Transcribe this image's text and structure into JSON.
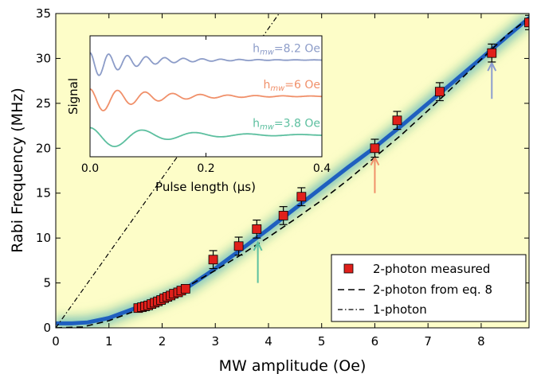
{
  "chart_data": {
    "type": "scatter",
    "xlabel": "MW amplitude (Oe)",
    "ylabel": "Rabi Frequency (MHz)",
    "xlim": [
      0,
      8.9
    ],
    "ylim": [
      0,
      35
    ],
    "x_ticks": [
      0,
      1,
      2,
      3,
      4,
      5,
      6,
      7,
      8
    ],
    "y_ticks": [
      0,
      5,
      10,
      15,
      20,
      25,
      30,
      35
    ],
    "grid": false,
    "legend_position": "bottom-right",
    "background": "#fdfdc8",
    "series": [
      {
        "name": "2-photon measured",
        "marker": "square",
        "color": "#e0201b",
        "x": [
          1.55,
          1.62,
          1.68,
          1.74,
          1.8,
          1.86,
          1.92,
          1.98,
          2.04,
          2.1,
          2.16,
          2.22,
          2.3,
          2.36,
          2.44,
          2.96,
          3.44,
          3.78,
          4.28,
          4.62,
          6.0,
          6.42,
          7.22,
          8.2,
          8.9
        ],
        "y": [
          2.2,
          2.3,
          2.4,
          2.5,
          2.65,
          2.8,
          2.95,
          3.1,
          3.3,
          3.45,
          3.6,
          3.8,
          3.95,
          4.15,
          4.35,
          7.6,
          9.1,
          11.0,
          12.5,
          14.6,
          20.0,
          23.1,
          26.3,
          30.6,
          34.0
        ],
        "err": [
          0.15,
          0.15,
          0.15,
          0.15,
          0.15,
          0.15,
          0.15,
          0.15,
          0.15,
          0.15,
          0.15,
          0.15,
          0.15,
          0.15,
          0.15,
          1.0,
          1.0,
          1.0,
          1.0,
          1.0,
          1.0,
          1.0,
          1.0,
          1.0,
          0.8
        ]
      },
      {
        "name": "2-photon from eq. 8",
        "style": "dashed",
        "color": "#000000",
        "x": [
          0.0,
          0.5,
          1.0,
          1.5,
          2.0,
          2.5,
          3.0,
          3.5,
          4.0,
          4.5,
          5.0,
          5.5,
          6.0,
          6.5,
          7.0,
          7.5,
          8.0,
          8.5,
          8.9
        ],
        "y": [
          0.0,
          0.1,
          0.8,
          1.9,
          3.2,
          4.7,
          6.4,
          8.2,
          10.1,
          12.1,
          14.2,
          16.5,
          19.0,
          21.5,
          24.2,
          27.0,
          29.9,
          32.7,
          34.5
        ]
      },
      {
        "name": "1-photon",
        "style": "dashdot",
        "color": "#000000",
        "x": [
          0.0,
          4.2
        ],
        "y": [
          0.0,
          35.0
        ]
      }
    ],
    "simulation_band": {
      "color": "#1f5fbf",
      "x": [
        0.0,
        0.3,
        0.6,
        1.0,
        1.5,
        2.0,
        2.5,
        3.0,
        3.5,
        4.0,
        4.5,
        5.0,
        5.5,
        6.0,
        6.5,
        7.0,
        7.5,
        8.0,
        8.5,
        8.9
      ],
      "y": [
        0.5,
        0.5,
        0.6,
        1.1,
        2.2,
        3.3,
        4.6,
        6.6,
        8.8,
        11.0,
        13.3,
        15.6,
        17.9,
        20.1,
        22.5,
        25.0,
        27.5,
        30.0,
        32.5,
        34.5
      ]
    },
    "arrows": [
      {
        "x": 3.8,
        "y_from": 5.0,
        "y_to": 9.5,
        "color": "#5cc0a0"
      },
      {
        "x": 6.0,
        "y_from": 15.0,
        "y_to": 19.0,
        "color": "#f0906a"
      },
      {
        "x": 8.2,
        "y_from": 25.5,
        "y_to": 29.5,
        "color": "#8c9cd0"
      }
    ],
    "inset": {
      "type": "line",
      "xlabel": "Pulse length (μs)",
      "ylabel": "Signal",
      "xlim": [
        0,
        0.4
      ],
      "x_ticks": [
        "0.0",
        "0.2",
        "0.4"
      ],
      "series": [
        {
          "name": "h_mw=8.2 Oe",
          "label_main": "h",
          "label_sub": "mw",
          "label_tail": "=8.2 Oe",
          "color": "#8c9cc8",
          "offset": 0.8,
          "freq": 31,
          "decay": 12
        },
        {
          "name": "h_mw=6 Oe",
          "label_main": "h",
          "label_sub": "mw",
          "label_tail": "=6 Oe",
          "color": "#f0906a",
          "offset": 0.5,
          "freq": 21,
          "decay": 10
        },
        {
          "name": "h_mw=3.8 Oe",
          "label_main": "h",
          "label_sub": "mw",
          "label_tail": "=3.8 Oe",
          "color": "#5cbf9f",
          "offset": 0.18,
          "freq": 11,
          "decay": 9
        }
      ]
    }
  }
}
